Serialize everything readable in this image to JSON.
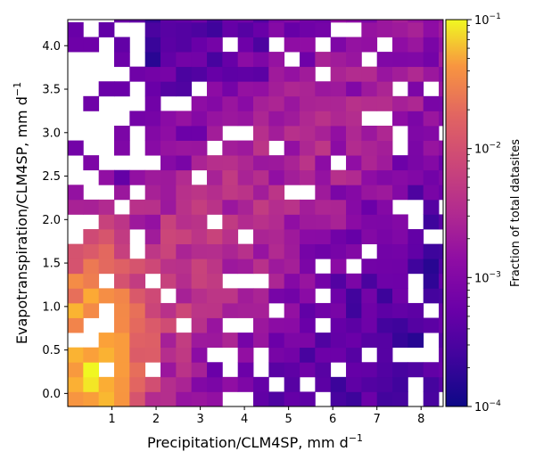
{
  "chart_data": {
    "type": "heatmap",
    "title": "",
    "xlabel": "Precipitation/CLM4SP,  mm d",
    "xlabel_sup": "−1",
    "ylabel": "Evapotranspiration/CLM4SP,  mm d",
    "ylabel_sup": "−1",
    "xlim": [
      0.0,
      8.5
    ],
    "ylim": [
      -0.15,
      4.3
    ],
    "bin_width": 0.35,
    "bin_height": 0.17,
    "x_start": 0.0,
    "y_start": -0.15,
    "xticks": [
      1,
      2,
      3,
      4,
      5,
      6,
      7,
      8
    ],
    "yticks": [
      0.0,
      0.5,
      1.0,
      1.5,
      2.0,
      2.5,
      3.0,
      3.5,
      4.0
    ],
    "ytick_labels": [
      "0.0",
      "0.5",
      "1.0",
      "1.5",
      "2.0",
      "2.5",
      "3.0",
      "3.5",
      "4.0"
    ],
    "colorbar": {
      "label": "Fraction of total datasites",
      "scale": "log",
      "min": 0.0001,
      "max": 0.1,
      "colormap": "plasma",
      "ticks": [
        {
          "base": "10",
          "exp": "−4",
          "value": 0.0001
        },
        {
          "base": "10",
          "exp": "−3",
          "value": 0.001
        },
        {
          "base": "10",
          "exp": "−2",
          "value": 0.01
        },
        {
          "base": "10",
          "exp": "−1",
          "value": 0.1
        }
      ]
    },
    "grid": false,
    "legend": "none"
  }
}
